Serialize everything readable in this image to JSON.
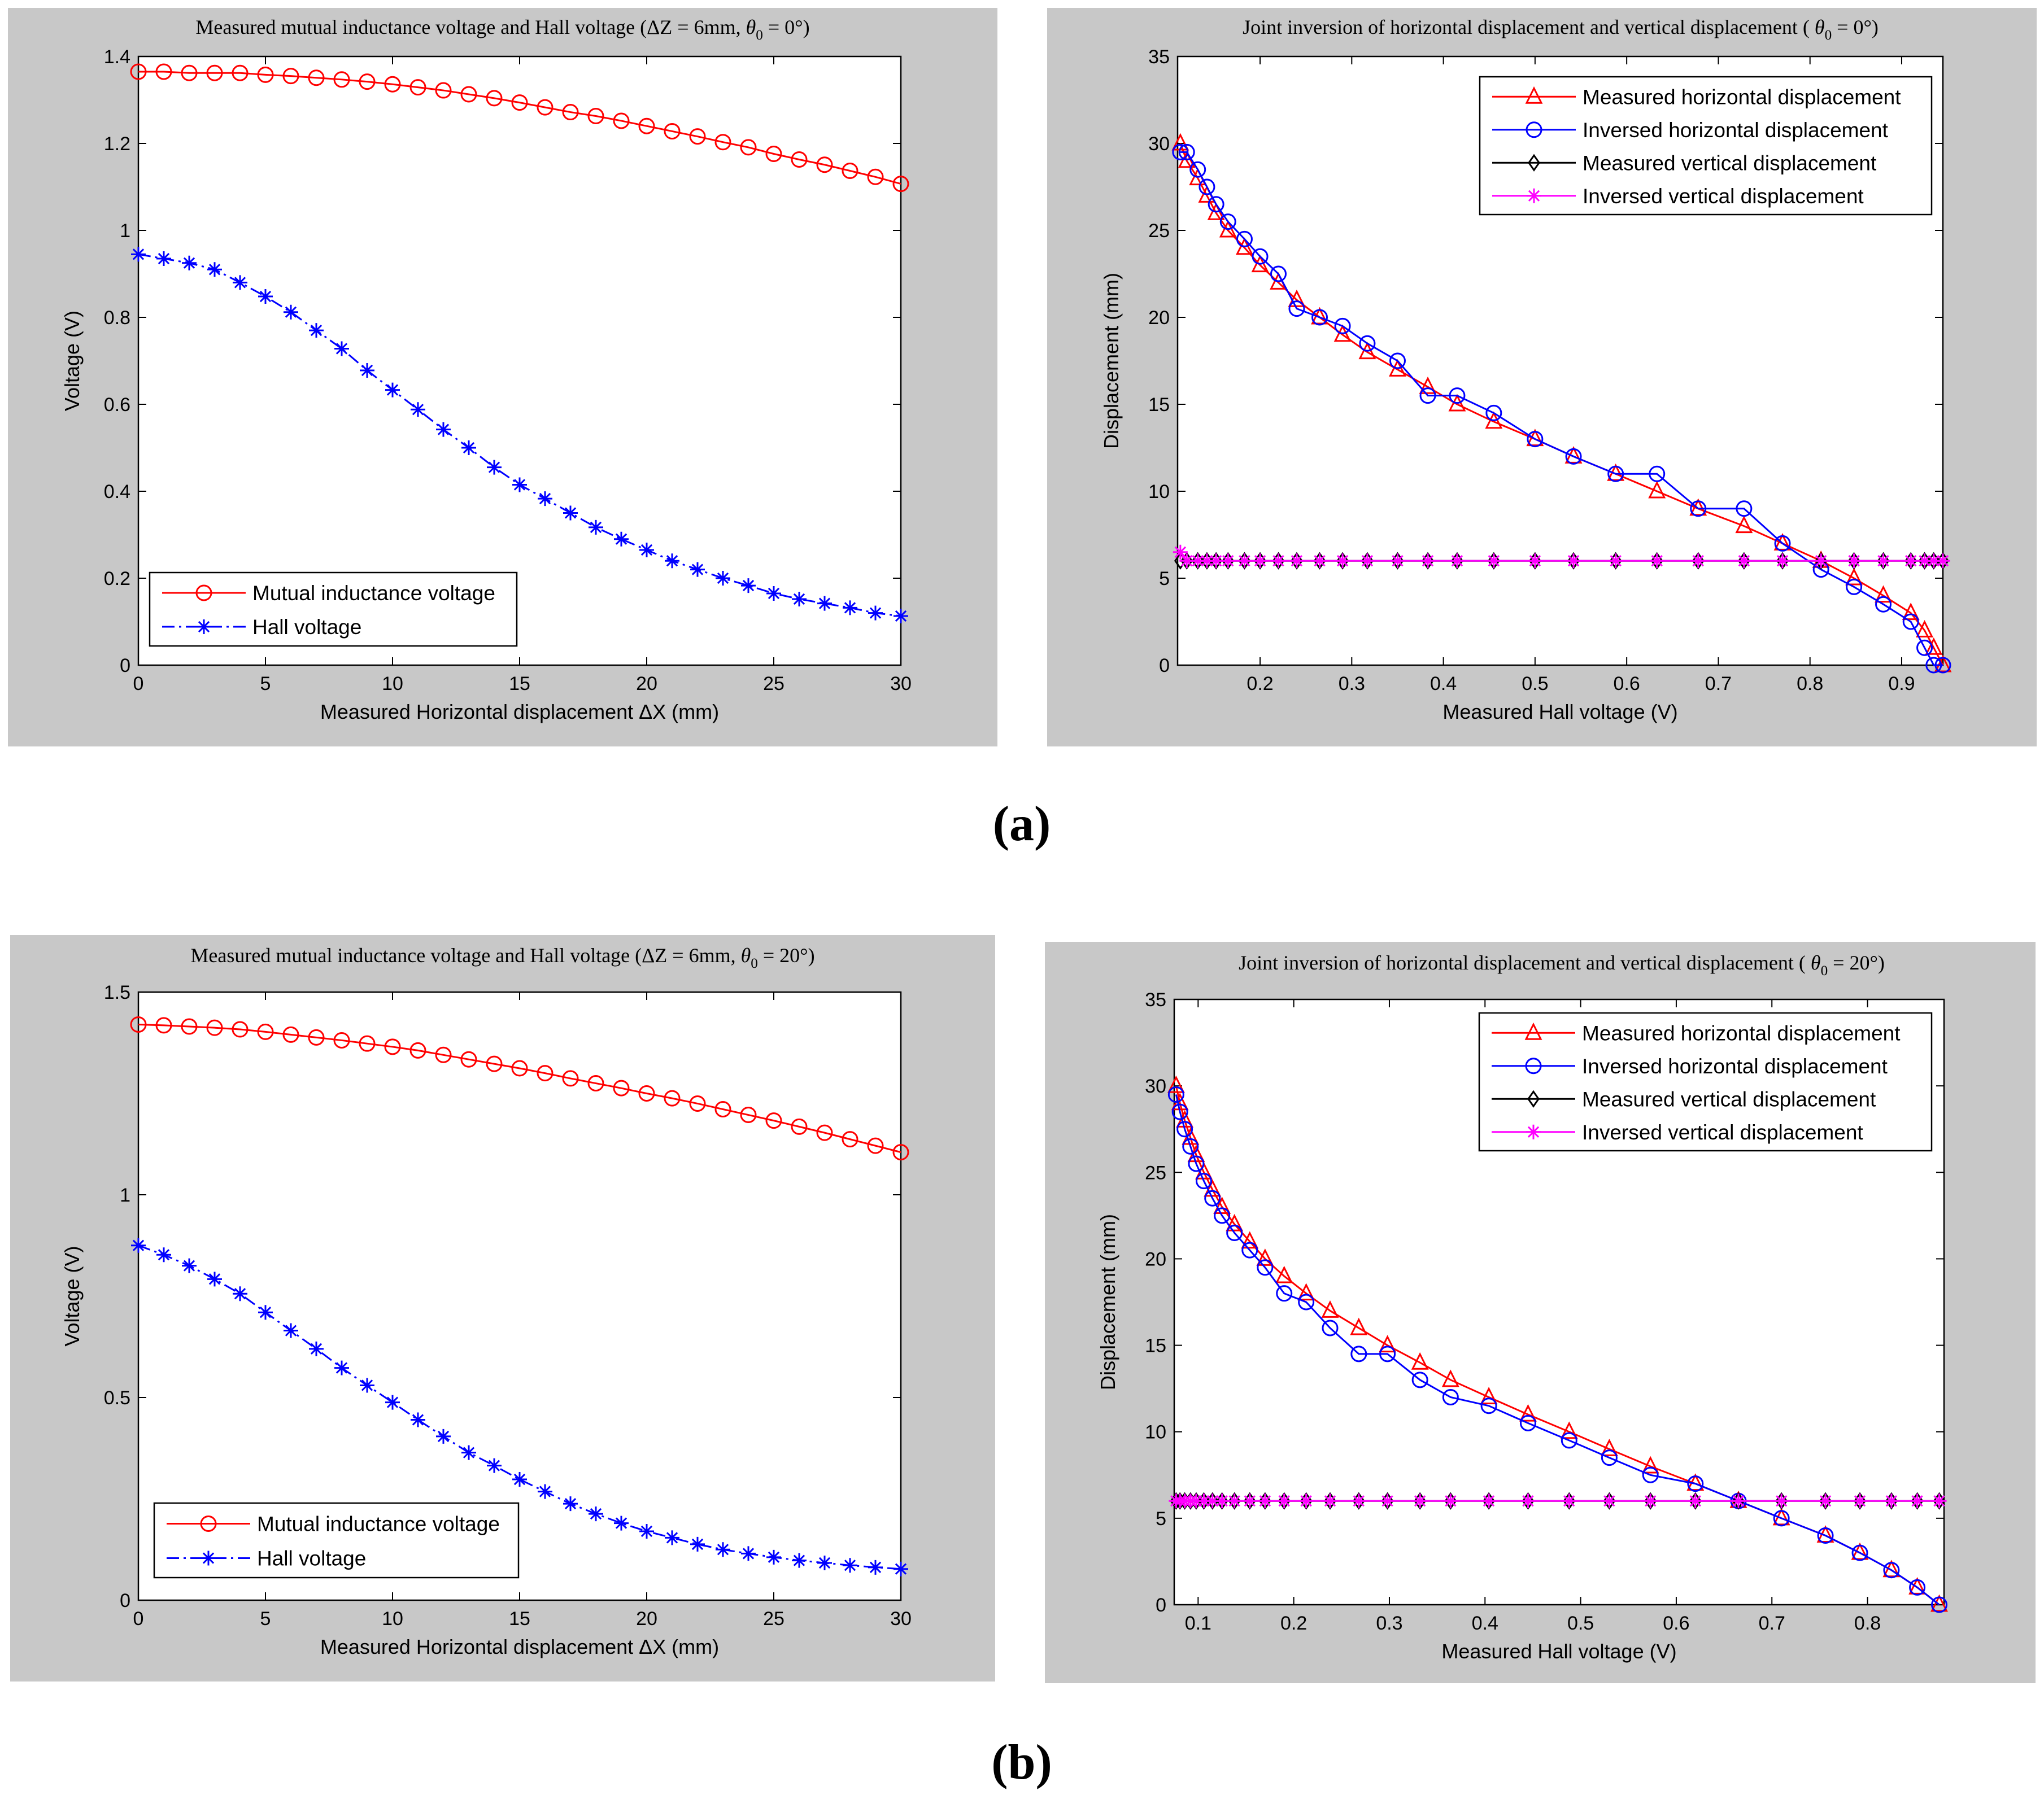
{
  "panel_labels": [
    "a",
    "b"
  ],
  "chart_data": [
    {
      "type": "line",
      "title": "Measured mutual inductance voltage and Hall voltage  (ΔZ = 6mm, θ0 = 0°)",
      "title_parts": {
        "main": "Measured mutual inductance voltage and Hall voltage",
        "cond": "(ΔZ = 6mm,",
        "theta": "θ",
        "sub": "0",
        "tail": " = 0°)"
      },
      "xlabel": "Measured Horizontal displacement ΔX (mm)",
      "ylabel": "Voltage (V)",
      "xlim": [
        0,
        30
      ],
      "ylim": [
        0,
        1.4
      ],
      "xticks": [
        0,
        5,
        10,
        15,
        20,
        25,
        30
      ],
      "yticks": [
        0,
        0.2,
        0.4,
        0.6,
        0.8,
        1,
        1.2,
        1.4
      ],
      "ytick_labels": [
        "0",
        "0.2",
        "0.4",
        "0.6",
        "0.8",
        "1",
        "1.2",
        "1.4"
      ],
      "legend_position": "bottom-left",
      "series": [
        {
          "name": "Mutual inductance voltage",
          "color": "#ff0000",
          "marker": "circle",
          "line": "solid",
          "x": [
            0,
            1,
            2,
            3,
            4,
            5,
            6,
            7,
            8,
            9,
            10,
            11,
            12,
            13,
            14,
            15,
            16,
            17,
            18,
            19,
            20,
            21,
            22,
            23,
            24,
            25,
            26,
            27,
            28,
            29,
            30
          ],
          "y": [
            1.365,
            1.365,
            1.362,
            1.362,
            1.362,
            1.358,
            1.355,
            1.351,
            1.347,
            1.342,
            1.336,
            1.329,
            1.322,
            1.313,
            1.304,
            1.294,
            1.283,
            1.272,
            1.263,
            1.252,
            1.24,
            1.228,
            1.216,
            1.203,
            1.191,
            1.176,
            1.163,
            1.151,
            1.137,
            1.123,
            1.107
          ]
        },
        {
          "name": "Hall voltage",
          "color": "#0000ff",
          "marker": "star",
          "line": "dashdot",
          "x": [
            0,
            1,
            2,
            3,
            4,
            5,
            6,
            7,
            8,
            9,
            10,
            11,
            12,
            13,
            14,
            15,
            16,
            17,
            18,
            19,
            20,
            21,
            22,
            23,
            24,
            25,
            26,
            27,
            28,
            29,
            30
          ],
          "y": [
            0.945,
            0.935,
            0.925,
            0.91,
            0.88,
            0.848,
            0.812,
            0.77,
            0.728,
            0.678,
            0.633,
            0.588,
            0.542,
            0.5,
            0.455,
            0.415,
            0.383,
            0.35,
            0.317,
            0.29,
            0.265,
            0.24,
            0.22,
            0.2,
            0.183,
            0.165,
            0.152,
            0.142,
            0.132,
            0.12,
            0.113
          ]
        }
      ]
    },
    {
      "type": "line",
      "title": "Joint inversion of horizontal displacement and vertical displacement (θ0 = 0°)",
      "title_parts": {
        "main": "Joint inversion of horizontal displacement and vertical displacement",
        "cond": "(",
        "theta": "θ",
        "sub": "0",
        "tail": " = 0°)"
      },
      "xlabel": "Measured Hall voltage (V)",
      "ylabel": "Displacement (mm)",
      "xlim": [
        0.11,
        0.945
      ],
      "ylim": [
        0,
        35
      ],
      "xticks": [
        0.2,
        0.3,
        0.4,
        0.5,
        0.6,
        0.7,
        0.8,
        0.9
      ],
      "yticks": [
        0,
        5,
        10,
        15,
        20,
        25,
        30,
        35
      ],
      "legend_position": "top-right",
      "series": [
        {
          "name": "Measured horizontal displacement",
          "color": "#ff0000",
          "marker": "triangle",
          "line": "solid",
          "x": [
            0.113,
            0.12,
            0.132,
            0.142,
            0.152,
            0.165,
            0.183,
            0.2,
            0.22,
            0.24,
            0.265,
            0.29,
            0.317,
            0.35,
            0.383,
            0.415,
            0.455,
            0.5,
            0.542,
            0.588,
            0.633,
            0.678,
            0.728,
            0.77,
            0.812,
            0.848,
            0.88,
            0.91,
            0.925,
            0.935,
            0.945
          ],
          "y": [
            30,
            29,
            28,
            27,
            26,
            25,
            24,
            23,
            22,
            21,
            20,
            19,
            18,
            17,
            16,
            15,
            14,
            13,
            12,
            11,
            10,
            9,
            8,
            7,
            6,
            5,
            4,
            3,
            2,
            1,
            0
          ]
        },
        {
          "name": "Inversed horizontal displacement",
          "color": "#0000ff",
          "marker": "circle",
          "line": "solid",
          "x": [
            0.113,
            0.12,
            0.132,
            0.142,
            0.152,
            0.165,
            0.183,
            0.2,
            0.22,
            0.24,
            0.265,
            0.29,
            0.317,
            0.35,
            0.383,
            0.415,
            0.455,
            0.5,
            0.542,
            0.588,
            0.633,
            0.678,
            0.728,
            0.77,
            0.812,
            0.848,
            0.88,
            0.91,
            0.925,
            0.935,
            0.945
          ],
          "y": [
            29.5,
            29.5,
            28.5,
            27.5,
            26.5,
            25.5,
            24.5,
            23.5,
            22.5,
            20.5,
            20,
            19.5,
            18.5,
            17.5,
            15.5,
            15.5,
            14.5,
            13,
            12,
            11,
            11,
            9,
            9,
            7,
            5.5,
            4.5,
            3.5,
            2.5,
            1,
            0,
            0
          ]
        },
        {
          "name": "Measured vertical displacement",
          "color": "#000000",
          "marker": "diamond",
          "line": "solid",
          "x": [
            0.113,
            0.12,
            0.132,
            0.142,
            0.152,
            0.165,
            0.183,
            0.2,
            0.22,
            0.24,
            0.265,
            0.29,
            0.317,
            0.35,
            0.383,
            0.415,
            0.455,
            0.5,
            0.542,
            0.588,
            0.633,
            0.678,
            0.728,
            0.77,
            0.812,
            0.848,
            0.88,
            0.91,
            0.925,
            0.935,
            0.945
          ],
          "y": [
            6,
            6,
            6,
            6,
            6,
            6,
            6,
            6,
            6,
            6,
            6,
            6,
            6,
            6,
            6,
            6,
            6,
            6,
            6,
            6,
            6,
            6,
            6,
            6,
            6,
            6,
            6,
            6,
            6,
            6,
            6
          ]
        },
        {
          "name": "Inversed vertical displacement",
          "color": "#ff00ff",
          "marker": "star",
          "line": "solid",
          "x": [
            0.113,
            0.12,
            0.132,
            0.142,
            0.152,
            0.165,
            0.183,
            0.2,
            0.22,
            0.24,
            0.265,
            0.29,
            0.317,
            0.35,
            0.383,
            0.415,
            0.455,
            0.5,
            0.542,
            0.588,
            0.633,
            0.678,
            0.728,
            0.77,
            0.812,
            0.848,
            0.88,
            0.91,
            0.925,
            0.935,
            0.945
          ],
          "y": [
            6.5,
            6,
            6,
            6,
            6,
            6,
            6,
            6,
            6,
            6,
            6,
            6,
            6,
            6,
            6,
            6,
            6,
            6,
            6,
            6,
            6,
            6,
            6,
            6,
            6,
            6,
            6,
            6,
            6,
            6,
            6
          ]
        }
      ]
    },
    {
      "type": "line",
      "title": "Measured mutual inductance voltage and Hall voltage  (ΔZ = 6mm, θ0 = 20°)",
      "title_parts": {
        "main": "Measured mutual inductance voltage and Hall voltage",
        "cond": "(ΔZ = 6mm,",
        "theta": "θ",
        "sub": "0",
        "tail": " = 20°)"
      },
      "xlabel": "Measured Horizontal displacement ΔX (mm)",
      "ylabel": "Voltage (V)",
      "xlim": [
        0,
        30
      ],
      "ylim": [
        0,
        1.5
      ],
      "xticks": [
        0,
        5,
        10,
        15,
        20,
        25,
        30
      ],
      "yticks": [
        0,
        0.5,
        1,
        1.5
      ],
      "ytick_labels": [
        "0",
        "0.5",
        "1",
        "1.5"
      ],
      "legend_position": "bottom-left",
      "series": [
        {
          "name": "Mutual inductance voltage",
          "color": "#ff0000",
          "marker": "circle",
          "line": "solid",
          "x": [
            0,
            1,
            2,
            3,
            4,
            5,
            6,
            7,
            8,
            9,
            10,
            11,
            12,
            13,
            14,
            15,
            16,
            17,
            18,
            19,
            20,
            21,
            22,
            23,
            24,
            25,
            26,
            27,
            28,
            29,
            30
          ],
          "y": [
            1.42,
            1.418,
            1.415,
            1.412,
            1.408,
            1.402,
            1.395,
            1.388,
            1.381,
            1.373,
            1.365,
            1.356,
            1.345,
            1.334,
            1.323,
            1.312,
            1.3,
            1.287,
            1.275,
            1.263,
            1.25,
            1.238,
            1.225,
            1.211,
            1.197,
            1.183,
            1.168,
            1.153,
            1.137,
            1.121,
            1.105
          ]
        },
        {
          "name": "Hall voltage",
          "color": "#0000ff",
          "marker": "star",
          "line": "dashdot",
          "x": [
            0,
            1,
            2,
            3,
            4,
            5,
            6,
            7,
            8,
            9,
            10,
            11,
            12,
            13,
            14,
            15,
            16,
            17,
            18,
            19,
            20,
            21,
            22,
            23,
            24,
            25,
            26,
            27,
            28,
            29,
            30
          ],
          "y": [
            0.875,
            0.852,
            0.825,
            0.792,
            0.756,
            0.71,
            0.665,
            0.62,
            0.573,
            0.53,
            0.488,
            0.445,
            0.404,
            0.364,
            0.332,
            0.298,
            0.268,
            0.238,
            0.213,
            0.19,
            0.17,
            0.154,
            0.138,
            0.125,
            0.115,
            0.106,
            0.098,
            0.092,
            0.086,
            0.081,
            0.077
          ]
        }
      ]
    },
    {
      "type": "line",
      "title": "Joint inversion of horizontal displacement and vertical displacement (θ0 = 20°)",
      "title_parts": {
        "main": "Joint inversion of horizontal displacement and vertical displacement",
        "cond": "(",
        "theta": "θ",
        "sub": "0",
        "tail": " = 20°)"
      },
      "xlabel": "Measured Hall voltage (V)",
      "ylabel": "Displacement (mm)",
      "xlim": [
        0.075,
        0.88
      ],
      "ylim": [
        0,
        35
      ],
      "xticks": [
        0.1,
        0.2,
        0.3,
        0.4,
        0.5,
        0.6,
        0.7,
        0.8
      ],
      "yticks": [
        0,
        5,
        10,
        15,
        20,
        25,
        30,
        35
      ],
      "legend_position": "top-right",
      "series": [
        {
          "name": "Measured horizontal displacement",
          "color": "#ff0000",
          "marker": "triangle",
          "line": "solid",
          "x": [
            0.077,
            0.081,
            0.086,
            0.092,
            0.098,
            0.106,
            0.115,
            0.125,
            0.138,
            0.154,
            0.17,
            0.19,
            0.213,
            0.238,
            0.268,
            0.298,
            0.332,
            0.364,
            0.404,
            0.445,
            0.488,
            0.53,
            0.573,
            0.62,
            0.665,
            0.71,
            0.756,
            0.792,
            0.825,
            0.852,
            0.875
          ],
          "y": [
            30,
            29,
            28,
            27,
            26,
            25,
            24,
            23,
            22,
            21,
            20,
            19,
            18,
            17,
            16,
            15,
            14,
            13,
            12,
            11,
            10,
            9,
            8,
            7,
            6,
            5,
            4,
            3,
            2,
            1,
            0
          ]
        },
        {
          "name": "Inversed horizontal displacement",
          "color": "#0000ff",
          "marker": "circle",
          "line": "solid",
          "x": [
            0.077,
            0.081,
            0.086,
            0.092,
            0.098,
            0.106,
            0.115,
            0.125,
            0.138,
            0.154,
            0.17,
            0.19,
            0.213,
            0.238,
            0.268,
            0.298,
            0.332,
            0.364,
            0.404,
            0.445,
            0.488,
            0.53,
            0.573,
            0.62,
            0.665,
            0.71,
            0.756,
            0.792,
            0.825,
            0.852,
            0.875
          ],
          "y": [
            29.5,
            28.5,
            27.5,
            26.5,
            25.5,
            24.5,
            23.5,
            22.5,
            21.5,
            20.5,
            19.5,
            18,
            17.5,
            16,
            14.5,
            14.5,
            13,
            12,
            11.5,
            10.5,
            9.5,
            8.5,
            7.5,
            7,
            6,
            5,
            4,
            3,
            2,
            1,
            0
          ]
        },
        {
          "name": "Measured vertical displacement",
          "color": "#000000",
          "marker": "diamond",
          "line": "solid",
          "x": [
            0.077,
            0.081,
            0.086,
            0.092,
            0.098,
            0.106,
            0.115,
            0.125,
            0.138,
            0.154,
            0.17,
            0.19,
            0.213,
            0.238,
            0.268,
            0.298,
            0.332,
            0.364,
            0.404,
            0.445,
            0.488,
            0.53,
            0.573,
            0.62,
            0.665,
            0.71,
            0.756,
            0.792,
            0.825,
            0.852,
            0.875
          ],
          "y": [
            6,
            6,
            6,
            6,
            6,
            6,
            6,
            6,
            6,
            6,
            6,
            6,
            6,
            6,
            6,
            6,
            6,
            6,
            6,
            6,
            6,
            6,
            6,
            6,
            6,
            6,
            6,
            6,
            6,
            6,
            6
          ]
        },
        {
          "name": "Inversed vertical displacement",
          "color": "#ff00ff",
          "marker": "star",
          "line": "solid",
          "x": [
            0.077,
            0.081,
            0.086,
            0.092,
            0.098,
            0.106,
            0.115,
            0.125,
            0.138,
            0.154,
            0.17,
            0.19,
            0.213,
            0.238,
            0.268,
            0.298,
            0.332,
            0.364,
            0.404,
            0.445,
            0.488,
            0.53,
            0.573,
            0.62,
            0.665,
            0.71,
            0.756,
            0.792,
            0.825,
            0.852,
            0.875
          ],
          "y": [
            6,
            6,
            6,
            6,
            6,
            6,
            6,
            6,
            6,
            6,
            6,
            6,
            6,
            6,
            6,
            6,
            6,
            6,
            6,
            6,
            6,
            6,
            6,
            6,
            6,
            6,
            6,
            6,
            6,
            6,
            6
          ]
        }
      ]
    }
  ]
}
